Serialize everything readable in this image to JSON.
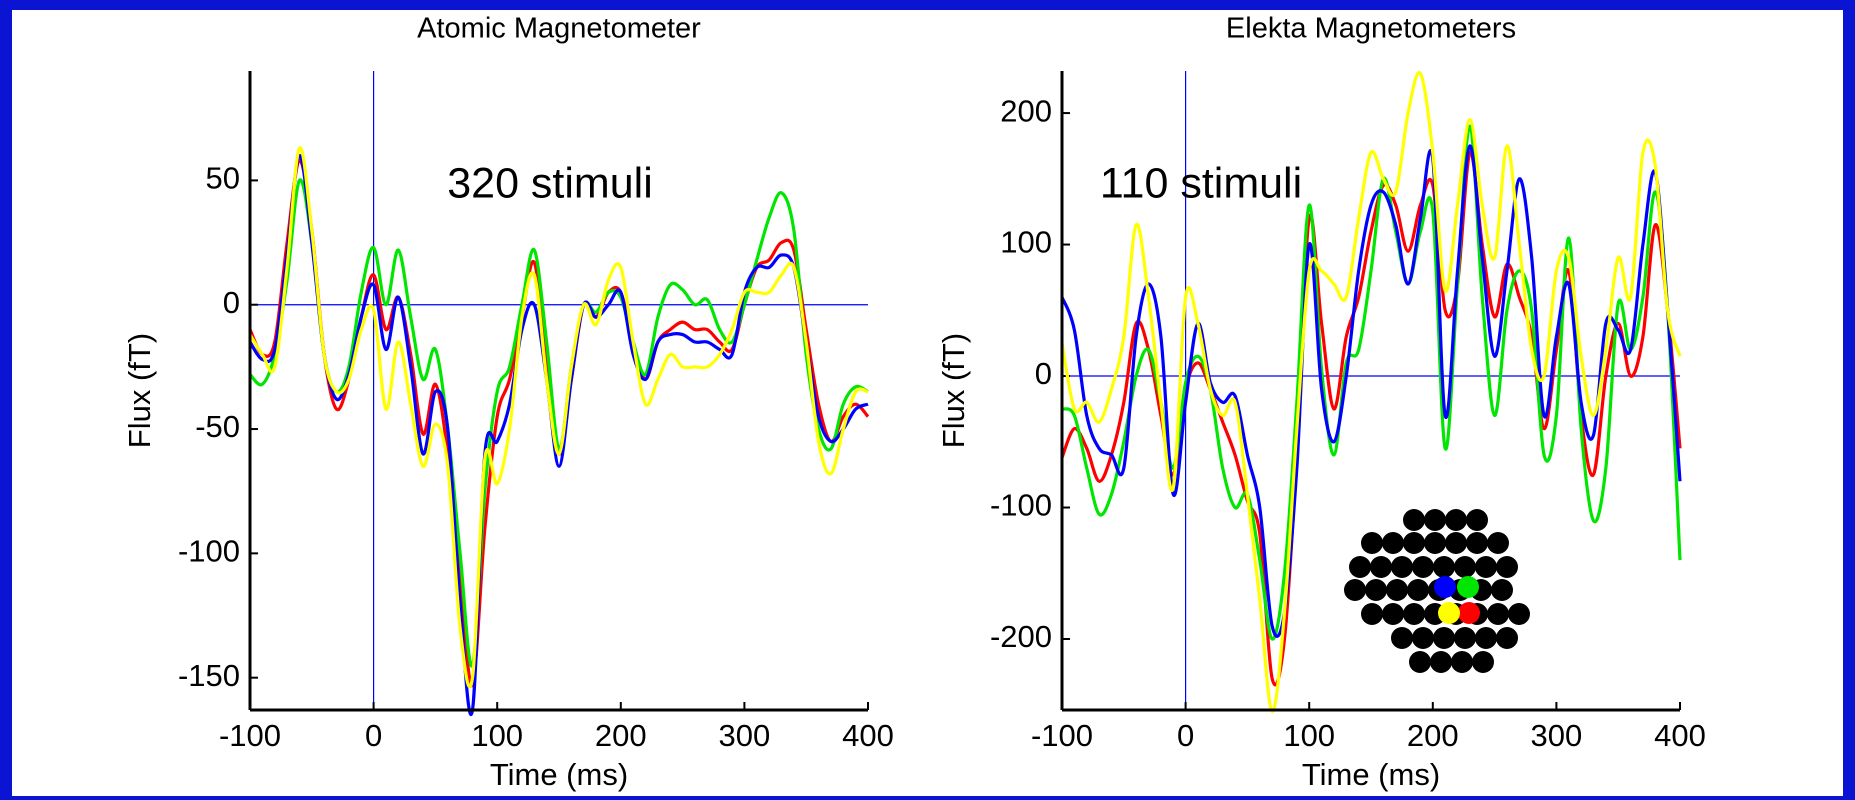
{
  "chart_data": [
    {
      "type": "line",
      "title": "Atomic Magnetometer",
      "xlabel": "Time (ms)",
      "ylabel": "Flux (fT)",
      "annotation": "320 stimuli",
      "x": [
        -100,
        -90,
        -80,
        -70,
        -60,
        -50,
        -40,
        -30,
        -20,
        -10,
        0,
        10,
        20,
        30,
        40,
        50,
        60,
        70,
        80,
        90,
        100,
        110,
        120,
        130,
        140,
        150,
        160,
        170,
        180,
        190,
        200,
        210,
        220,
        230,
        240,
        250,
        260,
        270,
        280,
        290,
        300,
        310,
        320,
        330,
        340,
        350,
        360,
        370,
        380,
        390,
        400
      ],
      "xlim": [
        -100,
        400
      ],
      "xticks": [
        -100,
        0,
        100,
        200,
        300,
        400
      ],
      "ylim": [
        -163,
        94
      ],
      "yticks": [
        -150,
        -100,
        -50,
        0,
        50
      ],
      "series": [
        {
          "color": "#ff0000",
          "values": [
            -10,
            -20,
            -15,
            25,
            58,
            30,
            -20,
            -42,
            -30,
            -5,
            12,
            -10,
            3,
            -20,
            -52,
            -32,
            -60,
            -110,
            -153,
            -90,
            -45,
            -30,
            -5,
            17,
            -25,
            -60,
            -30,
            0,
            -5,
            5,
            5,
            -15,
            -30,
            -15,
            -10,
            -7,
            -10,
            -10,
            -15,
            -18,
            0,
            15,
            18,
            25,
            22,
            -10,
            -40,
            -55,
            -45,
            -40,
            -45
          ]
        },
        {
          "color": "#00e600",
          "values": [
            -28,
            -32,
            -20,
            10,
            50,
            25,
            -20,
            -35,
            -25,
            5,
            23,
            0,
            22,
            -5,
            -30,
            -18,
            -50,
            -100,
            -145,
            -75,
            -35,
            -25,
            0,
            22,
            -15,
            -58,
            -25,
            0,
            -3,
            5,
            3,
            -15,
            -28,
            -5,
            8,
            6,
            0,
            2,
            -10,
            -15,
            0,
            18,
            35,
            45,
            30,
            -20,
            -50,
            -58,
            -40,
            -33,
            -35
          ]
        },
        {
          "color": "#0000ff",
          "values": [
            -15,
            -22,
            -18,
            20,
            60,
            25,
            -20,
            -38,
            -28,
            -5,
            8,
            -18,
            3,
            -25,
            -60,
            -35,
            -50,
            -120,
            -163,
            -60,
            -55,
            -40,
            -10,
            0,
            -30,
            -65,
            -30,
            0,
            -5,
            0,
            5,
            -20,
            -30,
            -15,
            -12,
            -12,
            -15,
            -15,
            -18,
            -20,
            5,
            15,
            15,
            20,
            15,
            -15,
            -45,
            -55,
            -50,
            -42,
            -40
          ]
        },
        {
          "color": "#ffff00",
          "values": [
            -12,
            -20,
            -25,
            15,
            63,
            30,
            -20,
            -35,
            -30,
            -10,
            -2,
            -42,
            -15,
            -40,
            -65,
            -48,
            -65,
            -130,
            -150,
            -62,
            -72,
            -50,
            -5,
            12,
            -30,
            -60,
            -25,
            0,
            -8,
            10,
            15,
            -15,
            -40,
            -30,
            -20,
            -25,
            -25,
            -25,
            -20,
            -10,
            5,
            5,
            5,
            12,
            15,
            -15,
            -55,
            -68,
            -50,
            -35,
            -35
          ]
        }
      ]
    },
    {
      "type": "line",
      "title": "Elekta Magnetometers",
      "xlabel": "Time (ms)",
      "ylabel": "Flux (fT)",
      "annotation": "110 stimuli",
      "x": [
        -100,
        -90,
        -80,
        -70,
        -60,
        -50,
        -40,
        -30,
        -20,
        -10,
        0,
        10,
        20,
        30,
        40,
        50,
        60,
        70,
        80,
        90,
        100,
        110,
        120,
        130,
        140,
        150,
        160,
        170,
        180,
        190,
        200,
        210,
        220,
        230,
        240,
        250,
        260,
        270,
        280,
        290,
        300,
        310,
        320,
        330,
        340,
        350,
        360,
        370,
        380,
        390,
        400
      ],
      "xlim": [
        -100,
        400
      ],
      "xticks": [
        -100,
        0,
        100,
        200,
        300,
        400
      ],
      "ylim": [
        -254,
        232
      ],
      "yticks": [
        -200,
        -100,
        0,
        100,
        200
      ],
      "series": [
        {
          "color": "#ff0000",
          "values": [
            -62,
            -40,
            -55,
            -80,
            -60,
            -20,
            40,
            20,
            -30,
            -75,
            -10,
            10,
            -10,
            -35,
            -60,
            -95,
            -120,
            -230,
            -200,
            -60,
            120,
            40,
            -25,
            30,
            60,
            110,
            145,
            130,
            95,
            130,
            145,
            50,
            70,
            170,
            100,
            45,
            85,
            60,
            30,
            -40,
            20,
            80,
            -30,
            -75,
            0,
            40,
            0,
            30,
            115,
            50,
            -55
          ]
        },
        {
          "color": "#00e600",
          "values": [
            -25,
            -30,
            -70,
            -105,
            -90,
            -50,
            0,
            20,
            -20,
            -70,
            -5,
            15,
            -10,
            -70,
            -100,
            -90,
            -140,
            -200,
            -150,
            -20,
            130,
            5,
            -60,
            10,
            20,
            80,
            150,
            110,
            70,
            110,
            125,
            -55,
            70,
            190,
            60,
            -30,
            50,
            80,
            50,
            -60,
            -30,
            105,
            -40,
            -110,
            -70,
            55,
            20,
            60,
            140,
            50,
            -140
          ]
        },
        {
          "color": "#0000ff",
          "values": [
            60,
            35,
            -30,
            -55,
            -60,
            -70,
            30,
            70,
            30,
            -90,
            -20,
            40,
            -5,
            -20,
            -15,
            -60,
            -100,
            -190,
            -180,
            -70,
            100,
            -10,
            -50,
            0,
            80,
            130,
            140,
            115,
            70,
            120,
            165,
            -30,
            80,
            175,
            90,
            15,
            80,
            150,
            90,
            -30,
            30,
            70,
            -20,
            -45,
            40,
            35,
            20,
            100,
            155,
            50,
            -80
          ]
        },
        {
          "color": "#ffff00",
          "values": [
            25,
            -25,
            -20,
            -35,
            -10,
            30,
            115,
            60,
            -20,
            -85,
            60,
            40,
            -10,
            -30,
            -20,
            -90,
            -170,
            -255,
            -180,
            -40,
            80,
            80,
            70,
            60,
            120,
            170,
            150,
            140,
            200,
            230,
            170,
            65,
            130,
            195,
            130,
            90,
            175,
            100,
            20,
            0,
            80,
            90,
            15,
            -30,
            20,
            90,
            60,
            170,
            160,
            50,
            15
          ]
        }
      ]
    }
  ]
}
